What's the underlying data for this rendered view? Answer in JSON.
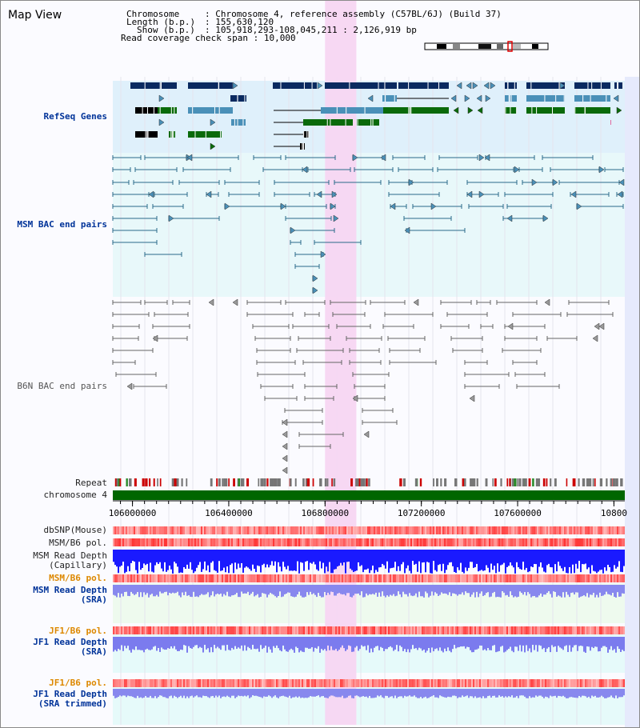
{
  "map": {
    "title": "Map View",
    "chromosome_key": "Chromosome",
    "chromosome_value": "Chromosome 4, reference assembly (C57BL/6J) (Build 37)",
    "length_key": "Length (b.p.)",
    "length_value": "155,630,120",
    "show_key": "Show (b.p.)",
    "show_value": "105,918,293-108,045,211 : 2,126,919 bp",
    "span_key": "Read coverage check span",
    "span_value": "10,000"
  },
  "region": {
    "start": 105918293,
    "end": 108045211,
    "highlight_start": 106800000,
    "highlight_end": 106930000
  },
  "tracks": {
    "refseq": "RefSeq Genes",
    "msm_bac": "MSM BAC end pairs",
    "b6n_bac": "B6N BAC end pairs",
    "repeat": "Repeat",
    "chromosome": "chromosome 4",
    "dbsnp": "dbSNP(Mouse)",
    "msm_b6_pol_1": "MSM/B6 pol.",
    "msm_depth_cap_1": "MSM Read Depth",
    "msm_depth_cap_2": "(Capillary)",
    "msm_b6_pol_2": "MSM/B6 pol.",
    "msm_depth_sra_1": "MSM Read Depth",
    "msm_depth_sra_2": "(SRA)",
    "jf1_b6_pol_1": "JF1/B6 pol.",
    "jf1_depth_sra_1": "JF1 Read Depth",
    "jf1_depth_sra_2": "(SRA)",
    "jf1_b6_pol_2": "JF1/B6 pol.",
    "jf1_depth_trim_1": "JF1 Read Depth",
    "jf1_depth_trim_2": "(SRA trimmed)"
  },
  "axis": {
    "ticks": [
      "106000000",
      "106400000",
      "106800000",
      "107200000",
      "107600000",
      "10800"
    ]
  },
  "colors": {
    "refseq_dark": "#0a2a60",
    "refseq_light": "#4a90b8",
    "refseq_green": "#0a6a0a",
    "bac_msm": "#2a6a8a",
    "bac_b6n": "#666666",
    "highlight": "#f7d6f2",
    "depth_capillary": "#1a1aff",
    "depth_sra": "#8888ee",
    "chromosome_bar": "#006600"
  }
}
